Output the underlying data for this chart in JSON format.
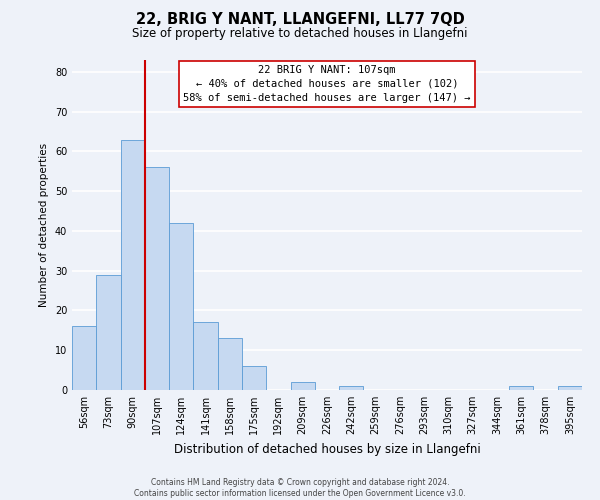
{
  "title": "22, BRIG Y NANT, LLANGEFNI, LL77 7QD",
  "subtitle": "Size of property relative to detached houses in Llangefni",
  "xlabel": "Distribution of detached houses by size in Llangefni",
  "ylabel": "Number of detached properties",
  "bin_labels": [
    "56sqm",
    "73sqm",
    "90sqm",
    "107sqm",
    "124sqm",
    "141sqm",
    "158sqm",
    "175sqm",
    "192sqm",
    "209sqm",
    "226sqm",
    "242sqm",
    "259sqm",
    "276sqm",
    "293sqm",
    "310sqm",
    "327sqm",
    "344sqm",
    "361sqm",
    "378sqm",
    "395sqm"
  ],
  "bar_values": [
    16,
    29,
    63,
    56,
    42,
    17,
    13,
    6,
    0,
    2,
    0,
    1,
    0,
    0,
    0,
    0,
    0,
    0,
    1,
    0,
    1
  ],
  "bar_color": "#c6d9f1",
  "bar_edge_color": "#5b9bd5",
  "vline_color": "#cc0000",
  "ylim": [
    0,
    83
  ],
  "yticks": [
    0,
    10,
    20,
    30,
    40,
    50,
    60,
    70,
    80
  ],
  "annotation_title": "22 BRIG Y NANT: 107sqm",
  "annotation_line1": "← 40% of detached houses are smaller (102)",
  "annotation_line2": "58% of semi-detached houses are larger (147) →",
  "footer_line1": "Contains HM Land Registry data © Crown copyright and database right 2024.",
  "footer_line2": "Contains public sector information licensed under the Open Government Licence v3.0.",
  "background_color": "#eef2f9",
  "grid_color": "#ffffff"
}
